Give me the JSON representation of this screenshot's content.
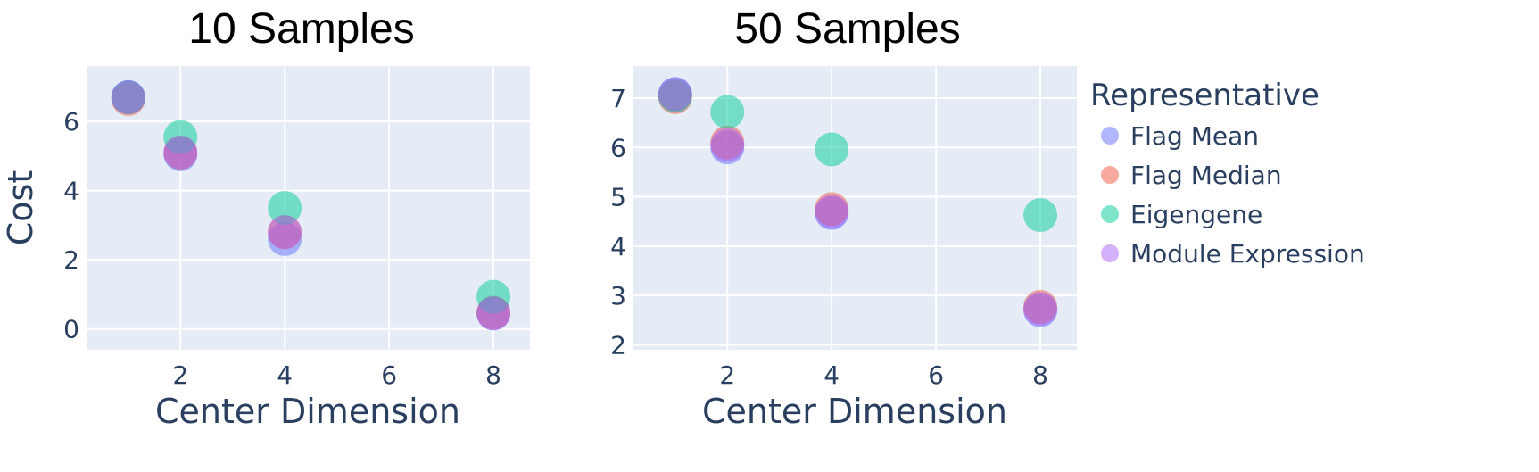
{
  "chart_data": [
    {
      "type": "scatter",
      "title": "10 Samples",
      "xlabel": "Center Dimension",
      "ylabel": "Cost",
      "x_ticks": [
        2,
        4,
        6,
        8
      ],
      "y_ticks": [
        0,
        2,
        4,
        6
      ],
      "xlim": [
        0.2,
        8.7
      ],
      "ylim": [
        -0.6,
        7.6
      ],
      "grid": true,
      "series": [
        {
          "name": "Flag Mean",
          "x": [
            1,
            2,
            4,
            8
          ],
          "y": [
            6.7,
            5.05,
            2.6,
            0.45
          ]
        },
        {
          "name": "Flag Median",
          "x": [
            1,
            2,
            4,
            8
          ],
          "y": [
            6.65,
            5.1,
            2.8,
            0.47
          ]
        },
        {
          "name": "Eigengene",
          "x": [
            1,
            2,
            4,
            8
          ],
          "y": [
            6.7,
            5.55,
            3.5,
            0.93
          ]
        },
        {
          "name": "Module Expression",
          "x": [
            1,
            2,
            4,
            8
          ],
          "y": [
            6.7,
            5.1,
            2.8,
            0.45
          ]
        }
      ]
    },
    {
      "type": "scatter",
      "title": "50 Samples",
      "xlabel": "Center Dimension",
      "ylabel": "",
      "x_ticks": [
        2,
        4,
        6,
        8
      ],
      "y_ticks": [
        2,
        3,
        4,
        5,
        6,
        7
      ],
      "xlim": [
        0.2,
        8.7
      ],
      "ylim": [
        1.9,
        7.65
      ],
      "grid": true,
      "series": [
        {
          "name": "Flag Mean",
          "x": [
            1,
            2,
            4,
            8
          ],
          "y": [
            7.08,
            6.0,
            4.67,
            2.7
          ]
        },
        {
          "name": "Flag Median",
          "x": [
            1,
            2,
            4,
            8
          ],
          "y": [
            7.02,
            6.1,
            4.75,
            2.77
          ]
        },
        {
          "name": "Eigengene",
          "x": [
            1,
            2,
            4,
            8
          ],
          "y": [
            7.05,
            6.72,
            5.96,
            4.63
          ]
        },
        {
          "name": "Module Expression",
          "x": [
            1,
            2,
            4,
            8
          ],
          "y": [
            7.08,
            6.05,
            4.7,
            2.73
          ]
        }
      ]
    }
  ],
  "legend": {
    "title": "Representative",
    "placement": "right",
    "items": [
      {
        "label": "Flag Mean",
        "color": "#636efa"
      },
      {
        "label": "Flag Median",
        "color": "#ef553b"
      },
      {
        "label": "Eigengene",
        "color": "#00cc96"
      },
      {
        "label": "Module Expression",
        "color": "#ab63fa"
      }
    ]
  },
  "colors": {
    "plot_background": "#e5ecf6",
    "gridline": "#ffffff",
    "text": "#2a3f5f"
  }
}
